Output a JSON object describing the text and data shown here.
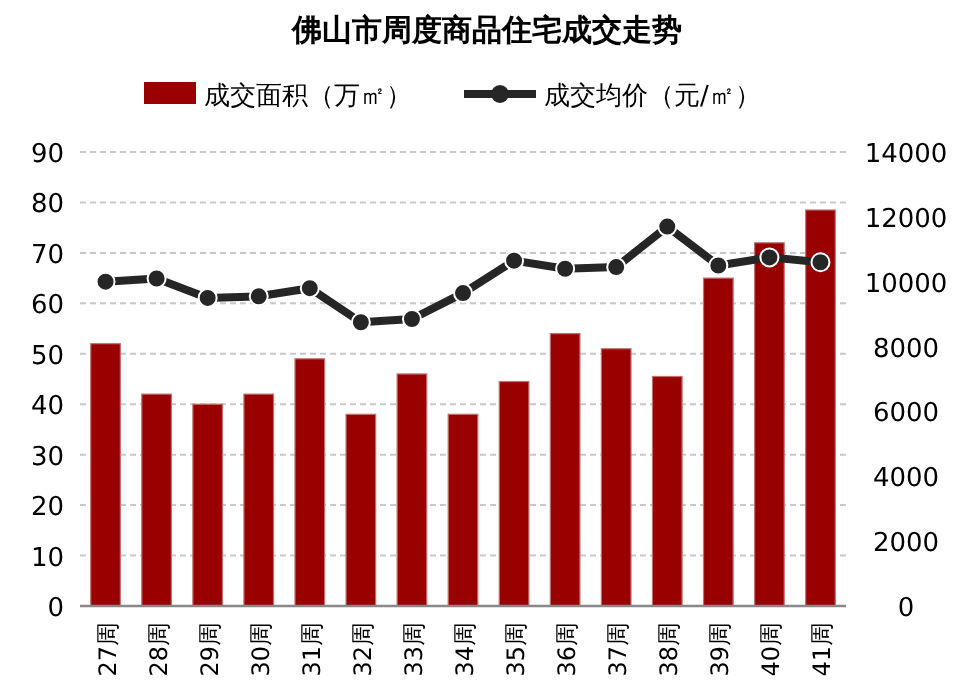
{
  "chart_data": {
    "type": "bar",
    "title": "佛山市周度商品住宅成交走势",
    "categories": [
      "27周",
      "28周",
      "29周",
      "30周",
      "31周",
      "32周",
      "33周",
      "34周",
      "35周",
      "36周",
      "37周",
      "38周",
      "39周",
      "40周",
      "41周"
    ],
    "series": [
      {
        "name": "成交面积（万㎡）",
        "color": "#990000",
        "values": [
          52,
          42,
          40,
          42,
          49,
          38,
          46,
          38,
          44.5,
          54,
          51,
          45.5,
          65,
          72,
          78.5
        ]
      },
      {
        "name": "成交均价（元/㎡）",
        "type": "line",
        "axis": "y2",
        "color": "#262626",
        "marker": "circle",
        "values": [
          10000,
          10100,
          9500,
          9550,
          9800,
          8750,
          8850,
          9650,
          10650,
          10400,
          10450,
          11700,
          10500,
          10750,
          10600
        ]
      }
    ],
    "ylim": [
      0,
      90
    ],
    "yticks": [
      0,
      10,
      20,
      30,
      40,
      50,
      60,
      70,
      80,
      90
    ],
    "y2lim": [
      0,
      14000
    ],
    "y2ticks": [
      0,
      2000,
      4000,
      6000,
      8000,
      10000,
      12000,
      14000
    ],
    "grid": "y",
    "legend": "top"
  }
}
